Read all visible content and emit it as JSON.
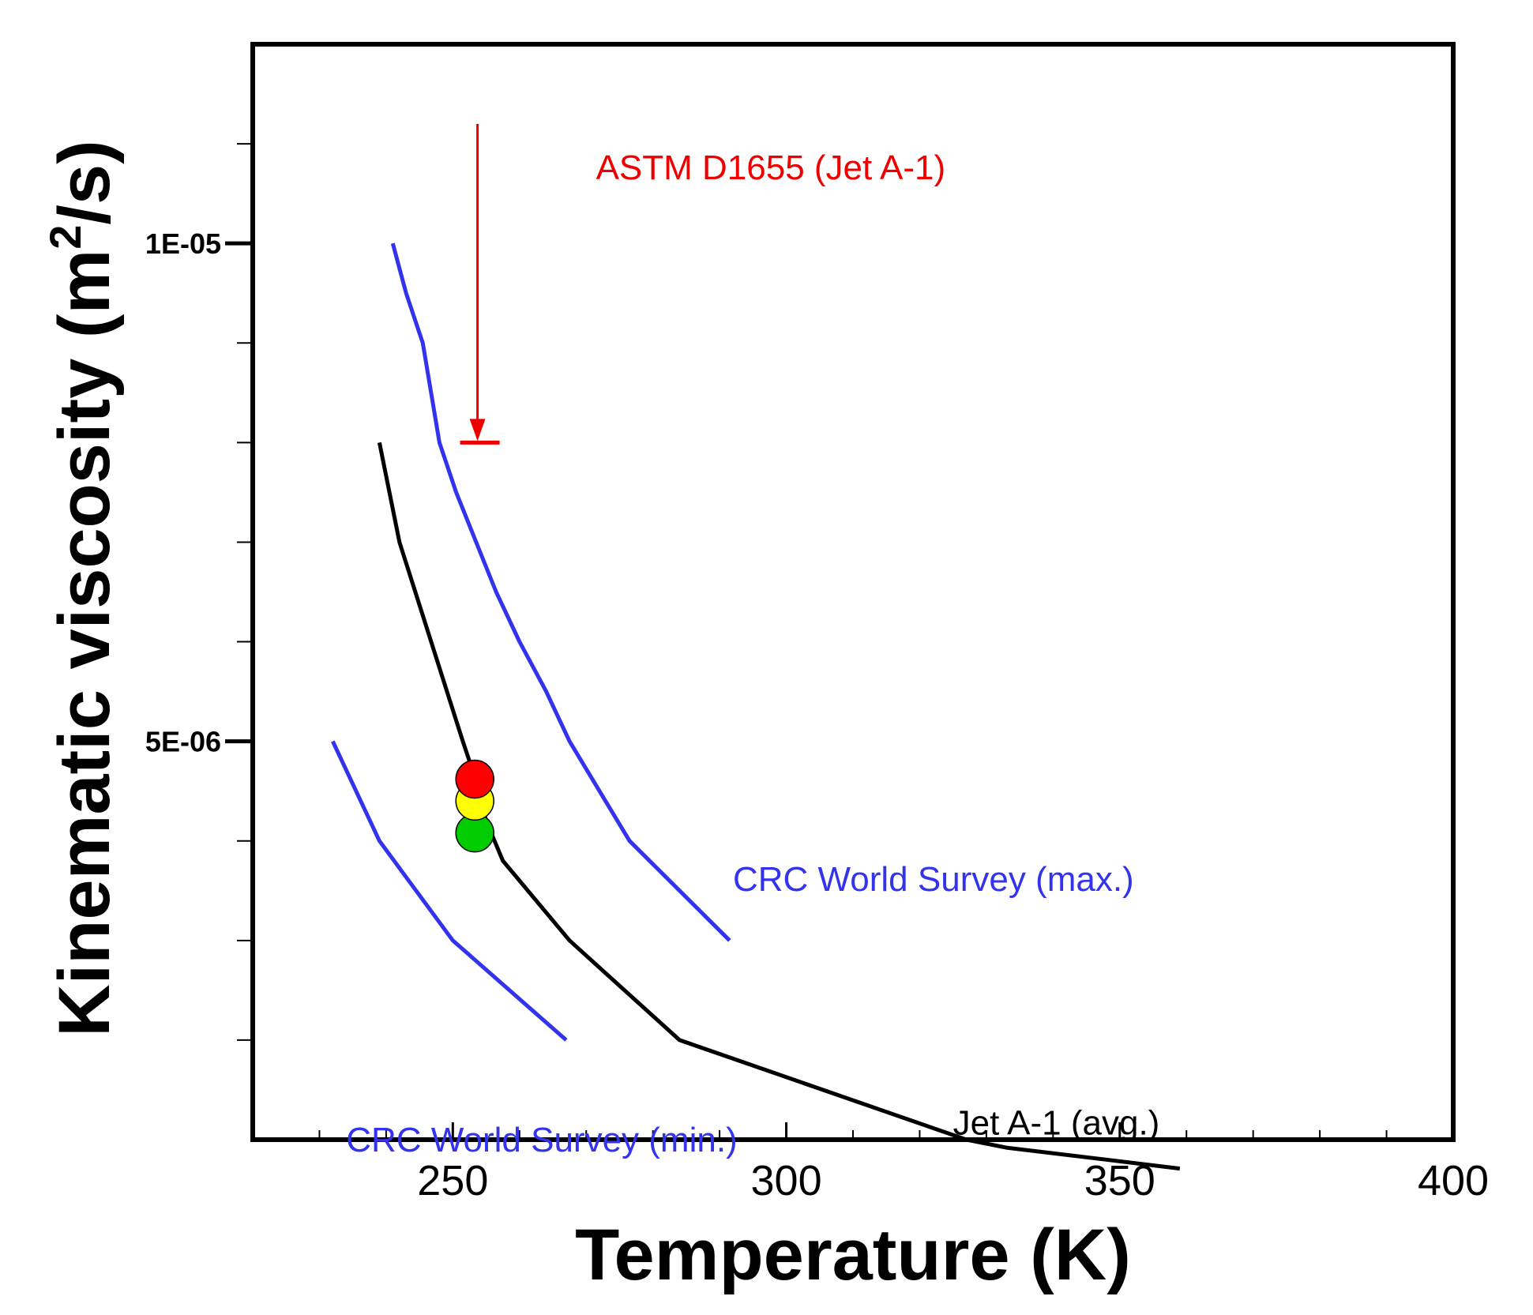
{
  "chart_data": {
    "type": "line",
    "title": "",
    "xlabel": "Temperature (K)",
    "ylabel": {
      "main": "Kinematic viscosity  (m",
      "superscript": "2",
      "tail": "/s)"
    },
    "x_axis": {
      "range": [
        220,
        400
      ],
      "major_ticks": [
        250,
        300,
        350,
        400
      ],
      "minor_ticks": [
        230,
        240,
        260,
        270,
        280,
        290,
        310,
        320,
        330,
        340,
        360,
        370,
        380,
        390
      ]
    },
    "y_axis": {
      "scale": "linear",
      "range": [
        1e-06,
        1.2e-05
      ],
      "labeled_ticks": [
        {
          "value": 5e-06,
          "label": "5E-06"
        },
        {
          "value": 1e-05,
          "label": "1E-05"
        }
      ],
      "minor_ticks": [
        2e-06,
        3e-06,
        4e-06,
        6e-06,
        7e-06,
        8e-06,
        9e-06,
        1.1e-05
      ]
    },
    "grid": false,
    "series": [
      {
        "name": "CRC World Survey (max.)",
        "color": "#3333ee",
        "x": [
          241,
          243,
          245.5,
          248,
          250.5,
          253.5,
          256.5,
          260,
          264,
          267.5,
          272,
          276.5,
          291.5
        ],
        "y": [
          1e-05,
          9.5e-06,
          9e-06,
          8e-06,
          7.5e-06,
          7e-06,
          6.5e-06,
          6e-06,
          5.5e-06,
          5e-06,
          4.5e-06,
          4e-06,
          3e-06
        ]
      },
      {
        "name": "CRC World Survey (min.)",
        "color": "#3333ee",
        "x": [
          232,
          239,
          250,
          267
        ],
        "y": [
          5e-06,
          4e-06,
          3e-06,
          2e-06
        ]
      },
      {
        "name": "Jet A-1 (avg.)",
        "color": "#000000",
        "x": [
          239,
          242,
          251.5,
          253,
          255,
          257.5,
          267.5,
          284,
          327,
          333,
          359
        ],
        "y": [
          8e-06,
          7e-06,
          5e-06,
          4.7e-06,
          4.2e-06,
          3.8e-06,
          3e-06,
          2e-06,
          1e-06,
          9.2e-07,
          7.1e-07
        ]
      }
    ],
    "markers": [
      {
        "color": "red",
        "x": 253.3,
        "y": 4.62e-06
      },
      {
        "color": "yellow",
        "x": 253.3,
        "y": 4.4e-06
      },
      {
        "color": "green",
        "x": 253.3,
        "y": 4.08e-06
      }
    ],
    "limit_arrow": {
      "label": "ASTM D1655 (Jet A-1)",
      "color": "#ee0000",
      "x": 253.7,
      "y_from": 1.12e-05,
      "y_to": 8e-06
    },
    "annotations": [
      {
        "text": "CRC World Survey (max.)",
        "color": "#3333ee",
        "x": 292,
        "y": 3.5e-06
      },
      {
        "text": "CRC World Survey (min.)",
        "color": "#3333ee",
        "x": 234,
        "y": 8.8e-07
      },
      {
        "text": "Jet A-1 (avg.)",
        "color": "#000000",
        "x": 325,
        "y": 1.05e-06
      }
    ]
  }
}
